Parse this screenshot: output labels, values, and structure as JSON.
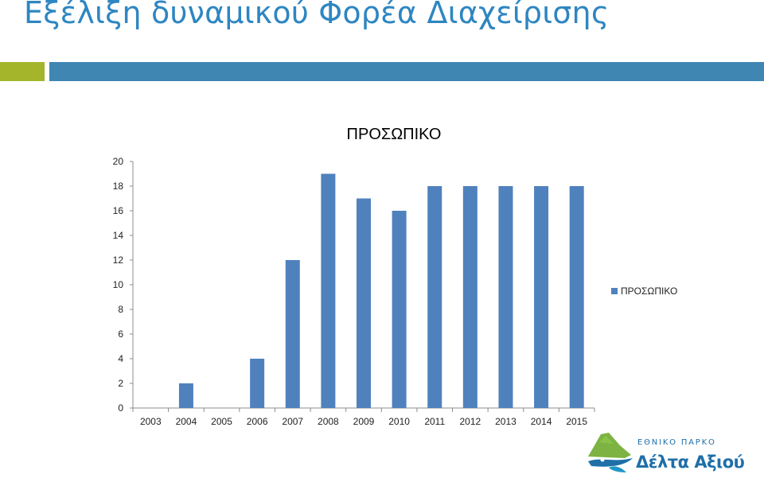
{
  "slide": {
    "title": "Εξέλιξη δυναμικού Φορέα Διαχείρισης",
    "colors": {
      "title": "#2e86c1",
      "band_green": "#a4b52c",
      "band_blue": "#3f86b3"
    }
  },
  "chart_data": {
    "type": "bar",
    "title": "ΠΡΟΣΩΠΙΚΟ",
    "categories": [
      "2003",
      "2004",
      "2005",
      "2006",
      "2007",
      "2008",
      "2009",
      "2010",
      "2011",
      "2012",
      "2013",
      "2014",
      "2015"
    ],
    "series": [
      {
        "name": "ΠΡΟΣΩΠΙΚΟ",
        "values": [
          0,
          2,
          0,
          4,
          12,
          19,
          17,
          16,
          18,
          18,
          18,
          18,
          18
        ],
        "color": "#4f81bd"
      }
    ],
    "y_ticks": [
      0,
      2,
      4,
      6,
      8,
      10,
      12,
      14,
      16,
      18,
      20
    ],
    "ylim": [
      0,
      20
    ],
    "xlabel": "",
    "ylabel": "",
    "grid": false,
    "legend_position": "right"
  },
  "logo": {
    "line1": "ΕΘΝΙΚΟ ΠΑΡΚΟ",
    "line2": "Δέλτα Αξιού",
    "colors": {
      "blue": "#1f6fa8",
      "green": "#7cb342"
    }
  }
}
